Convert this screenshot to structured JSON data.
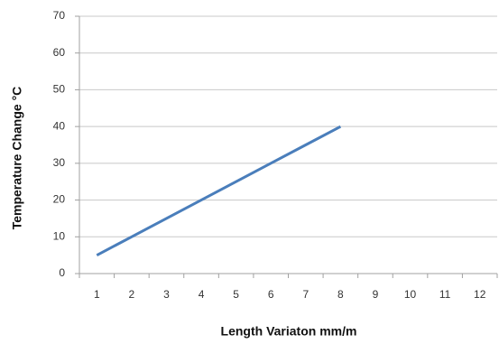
{
  "chart_data": {
    "type": "line",
    "x_label": "Length Variaton mm/m",
    "y_label": "Temperature Change °C",
    "categories": [
      "1",
      "2",
      "3",
      "4",
      "5",
      "6",
      "7",
      "8",
      "9",
      "10",
      "11",
      "12"
    ],
    "values": [
      5,
      10,
      15,
      20,
      25,
      30,
      35,
      40,
      null,
      null,
      null,
      null
    ],
    "color": "#4a7ebb",
    "ylim": [
      0,
      70
    ],
    "yticks": [
      0,
      10,
      20,
      30,
      40,
      50,
      60,
      70
    ],
    "grid": true
  }
}
